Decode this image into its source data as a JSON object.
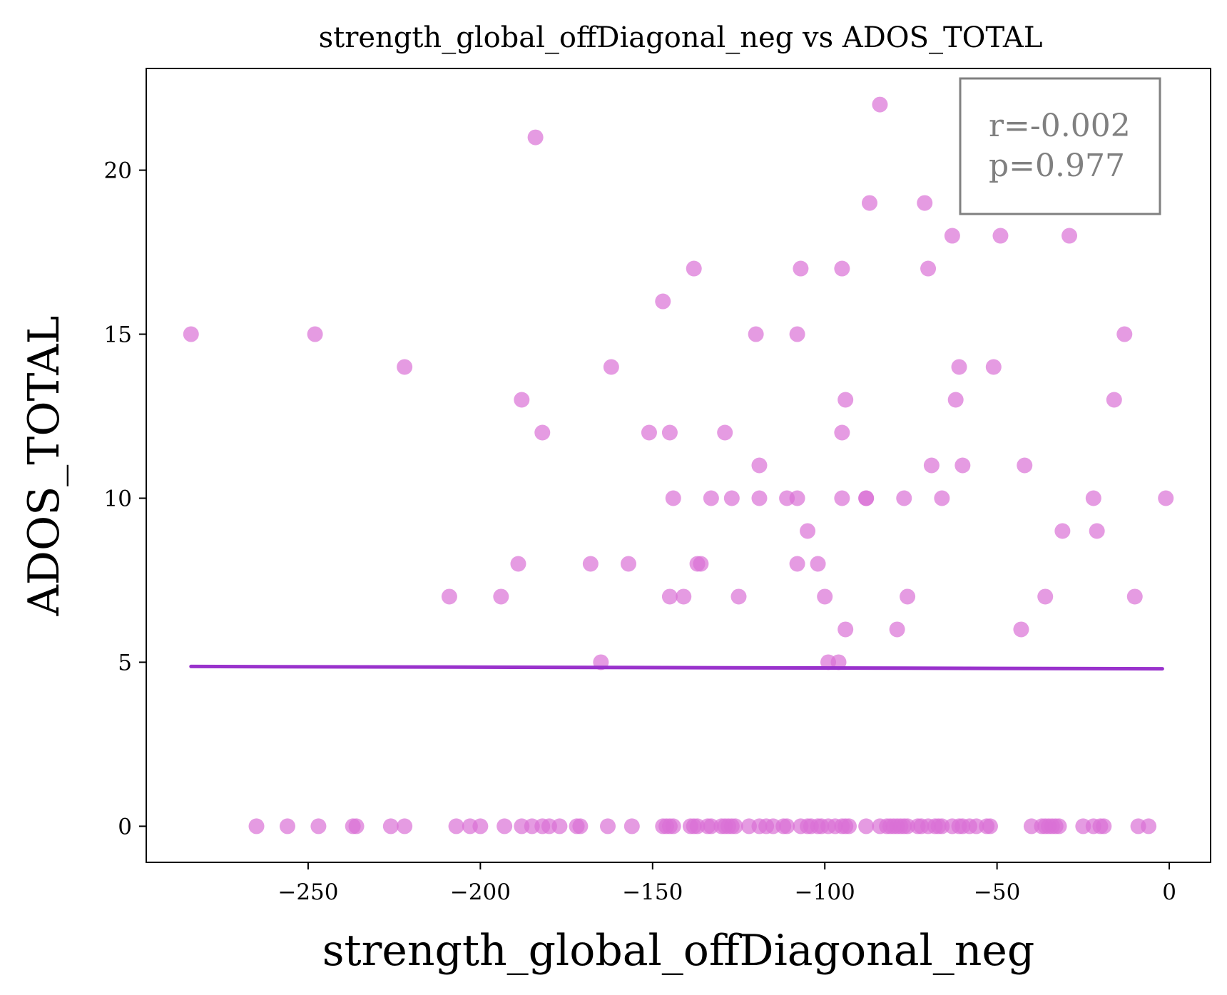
{
  "chart_data": {
    "type": "scatter",
    "title": "strength_global_offDiagonal_neg vs ADOS_TOTAL",
    "xlabel": "strength_global_offDiagonal_neg",
    "ylabel": "ADOS_TOTAL",
    "xlim": [
      -297,
      12
    ],
    "ylim": [
      -1.1,
      23.1
    ],
    "xticks": [
      -250,
      -200,
      -150,
      -100,
      -50,
      0
    ],
    "xtick_labels": [
      "−250",
      "−200",
      "−150",
      "−100",
      "−50",
      "0"
    ],
    "yticks": [
      0,
      5,
      10,
      15,
      20
    ],
    "ytick_labels": [
      "0",
      "5",
      "10",
      "15",
      "20"
    ],
    "grid": false,
    "annotation": {
      "line1": "r=-0.002",
      "line2": "p=0.977",
      "placement": "top-right"
    },
    "colors": {
      "points": "#da70d6",
      "fit_line": "#9932cc",
      "annotation": "#808080"
    },
    "fit_line": {
      "x": [
        -284,
        -2
      ],
      "y": [
        4.87,
        4.8
      ]
    },
    "points": [
      {
        "x": -284,
        "y": 15
      },
      {
        "x": -248,
        "y": 15
      },
      {
        "x": -222,
        "y": 14
      },
      {
        "x": -209,
        "y": 7
      },
      {
        "x": -194,
        "y": 7
      },
      {
        "x": -189,
        "y": 8
      },
      {
        "x": -188,
        "y": 13
      },
      {
        "x": -184,
        "y": 21
      },
      {
        "x": -182,
        "y": 12
      },
      {
        "x": -168,
        "y": 8
      },
      {
        "x": -165,
        "y": 5
      },
      {
        "x": -162,
        "y": 14
      },
      {
        "x": -157,
        "y": 8
      },
      {
        "x": -151,
        "y": 12
      },
      {
        "x": -147,
        "y": 16
      },
      {
        "x": -145,
        "y": 12
      },
      {
        "x": -145,
        "y": 7
      },
      {
        "x": -144,
        "y": 10
      },
      {
        "x": -141,
        "y": 7
      },
      {
        "x": -138,
        "y": 17
      },
      {
        "x": -137,
        "y": 8
      },
      {
        "x": -136,
        "y": 8
      },
      {
        "x": -133,
        "y": 10
      },
      {
        "x": -129,
        "y": 12
      },
      {
        "x": -127,
        "y": 10
      },
      {
        "x": -125,
        "y": 7
      },
      {
        "x": -120,
        "y": 15
      },
      {
        "x": -119,
        "y": 11
      },
      {
        "x": -119,
        "y": 10
      },
      {
        "x": -111,
        "y": 10
      },
      {
        "x": -108,
        "y": 15
      },
      {
        "x": -108,
        "y": 10
      },
      {
        "x": -108,
        "y": 8
      },
      {
        "x": -107,
        "y": 17
      },
      {
        "x": -105,
        "y": 9
      },
      {
        "x": -102,
        "y": 8
      },
      {
        "x": -100,
        "y": 7
      },
      {
        "x": -99,
        "y": 5
      },
      {
        "x": -96,
        "y": 5
      },
      {
        "x": -95,
        "y": 12
      },
      {
        "x": -95,
        "y": 10
      },
      {
        "x": -95,
        "y": 17
      },
      {
        "x": -94,
        "y": 13
      },
      {
        "x": -94,
        "y": 6
      },
      {
        "x": -88,
        "y": 10
      },
      {
        "x": -88,
        "y": 10
      },
      {
        "x": -87,
        "y": 19
      },
      {
        "x": -84,
        "y": 22
      },
      {
        "x": -79,
        "y": 6
      },
      {
        "x": -77,
        "y": 10
      },
      {
        "x": -76,
        "y": 7
      },
      {
        "x": -71,
        "y": 19
      },
      {
        "x": -70,
        "y": 17
      },
      {
        "x": -69,
        "y": 11
      },
      {
        "x": -66,
        "y": 10
      },
      {
        "x": -63,
        "y": 18
      },
      {
        "x": -62,
        "y": 13
      },
      {
        "x": -61,
        "y": 14
      },
      {
        "x": -60,
        "y": 11
      },
      {
        "x": -51,
        "y": 14
      },
      {
        "x": -49,
        "y": 18
      },
      {
        "x": -43,
        "y": 6
      },
      {
        "x": -42,
        "y": 11
      },
      {
        "x": -36,
        "y": 7
      },
      {
        "x": -31,
        "y": 9
      },
      {
        "x": -29,
        "y": 18
      },
      {
        "x": -22,
        "y": 10
      },
      {
        "x": -21,
        "y": 9
      },
      {
        "x": -16,
        "y": 13
      },
      {
        "x": -13,
        "y": 15
      },
      {
        "x": -10,
        "y": 7
      },
      {
        "x": -1,
        "y": 10
      },
      {
        "x": -265,
        "y": 0
      },
      {
        "x": -256,
        "y": 0
      },
      {
        "x": -247,
        "y": 0
      },
      {
        "x": -237,
        "y": 0
      },
      {
        "x": -236,
        "y": 0
      },
      {
        "x": -226,
        "y": 0
      },
      {
        "x": -222,
        "y": 0
      },
      {
        "x": -207,
        "y": 0
      },
      {
        "x": -203,
        "y": 0
      },
      {
        "x": -200,
        "y": 0
      },
      {
        "x": -193,
        "y": 0
      },
      {
        "x": -188,
        "y": 0
      },
      {
        "x": -185,
        "y": 0
      },
      {
        "x": -182,
        "y": 0
      },
      {
        "x": -180,
        "y": 0
      },
      {
        "x": -177,
        "y": 0
      },
      {
        "x": -172,
        "y": 0
      },
      {
        "x": -171,
        "y": 0
      },
      {
        "x": -163,
        "y": 0
      },
      {
        "x": -156,
        "y": 0
      },
      {
        "x": -147,
        "y": 0
      },
      {
        "x": -146,
        "y": 0
      },
      {
        "x": -145,
        "y": 0
      },
      {
        "x": -144,
        "y": 0
      },
      {
        "x": -139,
        "y": 0
      },
      {
        "x": -138,
        "y": 0
      },
      {
        "x": -137,
        "y": 0
      },
      {
        "x": -134,
        "y": 0
      },
      {
        "x": -133,
        "y": 0
      },
      {
        "x": -130,
        "y": 0
      },
      {
        "x": -129,
        "y": 0
      },
      {
        "x": -128,
        "y": 0
      },
      {
        "x": -127,
        "y": 0
      },
      {
        "x": -126,
        "y": 0
      },
      {
        "x": -122,
        "y": 0
      },
      {
        "x": -119,
        "y": 0
      },
      {
        "x": -117,
        "y": 0
      },
      {
        "x": -115,
        "y": 0
      },
      {
        "x": -112,
        "y": 0
      },
      {
        "x": -111,
        "y": 0
      },
      {
        "x": -107,
        "y": 0
      },
      {
        "x": -105,
        "y": 0
      },
      {
        "x": -104,
        "y": 0
      },
      {
        "x": -102,
        "y": 0
      },
      {
        "x": -101,
        "y": 0
      },
      {
        "x": -99,
        "y": 0
      },
      {
        "x": -97,
        "y": 0
      },
      {
        "x": -95,
        "y": 0
      },
      {
        "x": -94,
        "y": 0
      },
      {
        "x": -93,
        "y": 0
      },
      {
        "x": -88,
        "y": 0
      },
      {
        "x": -84,
        "y": 0
      },
      {
        "x": -82,
        "y": 0
      },
      {
        "x": -81,
        "y": 0
      },
      {
        "x": -80,
        "y": 0
      },
      {
        "x": -79,
        "y": 0
      },
      {
        "x": -78,
        "y": 0
      },
      {
        "x": -77,
        "y": 0
      },
      {
        "x": -76,
        "y": 0
      },
      {
        "x": -73,
        "y": 0
      },
      {
        "x": -72,
        "y": 0
      },
      {
        "x": -70,
        "y": 0
      },
      {
        "x": -68,
        "y": 0
      },
      {
        "x": -67,
        "y": 0
      },
      {
        "x": -66,
        "y": 0
      },
      {
        "x": -63,
        "y": 0
      },
      {
        "x": -61,
        "y": 0
      },
      {
        "x": -60,
        "y": 0
      },
      {
        "x": -58,
        "y": 0
      },
      {
        "x": -56,
        "y": 0
      },
      {
        "x": -53,
        "y": 0
      },
      {
        "x": -52,
        "y": 0
      },
      {
        "x": -40,
        "y": 0
      },
      {
        "x": -37,
        "y": 0
      },
      {
        "x": -36,
        "y": 0
      },
      {
        "x": -35,
        "y": 0
      },
      {
        "x": -34,
        "y": 0
      },
      {
        "x": -33,
        "y": 0
      },
      {
        "x": -32,
        "y": 0
      },
      {
        "x": -25,
        "y": 0
      },
      {
        "x": -22,
        "y": 0
      },
      {
        "x": -20,
        "y": 0
      },
      {
        "x": -19,
        "y": 0
      },
      {
        "x": -9,
        "y": 0
      },
      {
        "x": -6,
        "y": 0
      }
    ]
  }
}
